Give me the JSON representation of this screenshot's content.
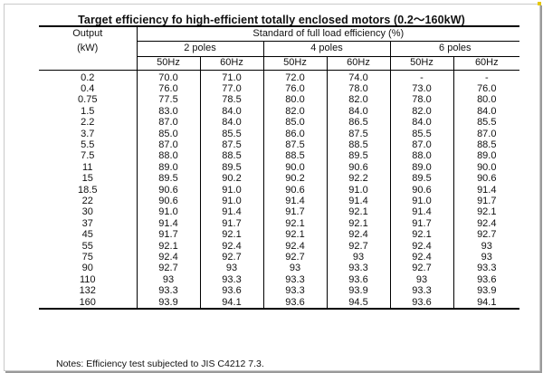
{
  "title": "Target efficiency fo high-efficient totally enclosed motors (0.2～160kW)",
  "header": {
    "output_label": "Output",
    "unit_label": "(kW)",
    "group_label": "Standard of full load efficiency (%)",
    "poles": [
      "2 poles",
      "4 poles",
      "6 poles"
    ],
    "freq": [
      "50Hz",
      "60Hz",
      "50Hz",
      "60Hz",
      "50Hz",
      "60Hz"
    ]
  },
  "rows": [
    [
      "0.2",
      "70.0",
      "71.0",
      "72.0",
      "74.0",
      "-",
      "-"
    ],
    [
      "0.4",
      "76.0",
      "77.0",
      "76.0",
      "78.0",
      "73.0",
      "76.0"
    ],
    [
      "0.75",
      "77.5",
      "78.5",
      "80.0",
      "82.0",
      "78.0",
      "80.0"
    ],
    [
      "1.5",
      "83.0",
      "84.0",
      "82.0",
      "84.0",
      "82.0",
      "84.0"
    ],
    [
      "2.2",
      "87.0",
      "84.0",
      "85.0",
      "86.5",
      "84.0",
      "85.5"
    ],
    [
      "3.7",
      "85.0",
      "85.5",
      "86.0",
      "87.5",
      "85.5",
      "87.0"
    ],
    [
      "5.5",
      "87.0",
      "87.5",
      "87.5",
      "88.5",
      "87.0",
      "88.5"
    ],
    [
      "7.5",
      "88.0",
      "88.5",
      "88.5",
      "89.5",
      "88.0",
      "89.0"
    ],
    [
      "11",
      "89.0",
      "89.5",
      "90.0",
      "90.6",
      "89.0",
      "90.0"
    ],
    [
      "15",
      "89.5",
      "90.2",
      "90.2",
      "92.2",
      "89.5",
      "90.6"
    ],
    [
      "18.5",
      "90.6",
      "91.0",
      "90.6",
      "91.0",
      "90.6",
      "91.4"
    ],
    [
      "22",
      "90.6",
      "91.0",
      "91.4",
      "91.4",
      "91.0",
      "91.7"
    ],
    [
      "30",
      "91.0",
      "91.4",
      "91.7",
      "92.1",
      "91.4",
      "92.1"
    ],
    [
      "37",
      "91.4",
      "91.7",
      "92.1",
      "92.1",
      "91.7",
      "92.4"
    ],
    [
      "45",
      "91.7",
      "92.1",
      "92.1",
      "92.4",
      "92.1",
      "92.7"
    ],
    [
      "55",
      "92.1",
      "92.4",
      "92.4",
      "92.7",
      "92.4",
      "93"
    ],
    [
      "75",
      "92.4",
      "92.7",
      "92.7",
      "93",
      "92.4",
      "93"
    ],
    [
      "90",
      "92.7",
      "93",
      "93",
      "93.3",
      "92.7",
      "93.3"
    ],
    [
      "110",
      "93",
      "93.3",
      "93.3",
      "93.6",
      "93",
      "93.6"
    ],
    [
      "132",
      "93.3",
      "93.6",
      "93.3",
      "93.9",
      "93.3",
      "93.9"
    ],
    [
      "160",
      "93.9",
      "94.1",
      "93.6",
      "94.5",
      "93.6",
      "94.1"
    ]
  ],
  "note": "Notes: Efficiency test subjected to JIS C4212 7.3.",
  "colors": {
    "border": "#000000",
    "accent": "#e6c800",
    "frame_shadow": "#9a9a9a"
  }
}
